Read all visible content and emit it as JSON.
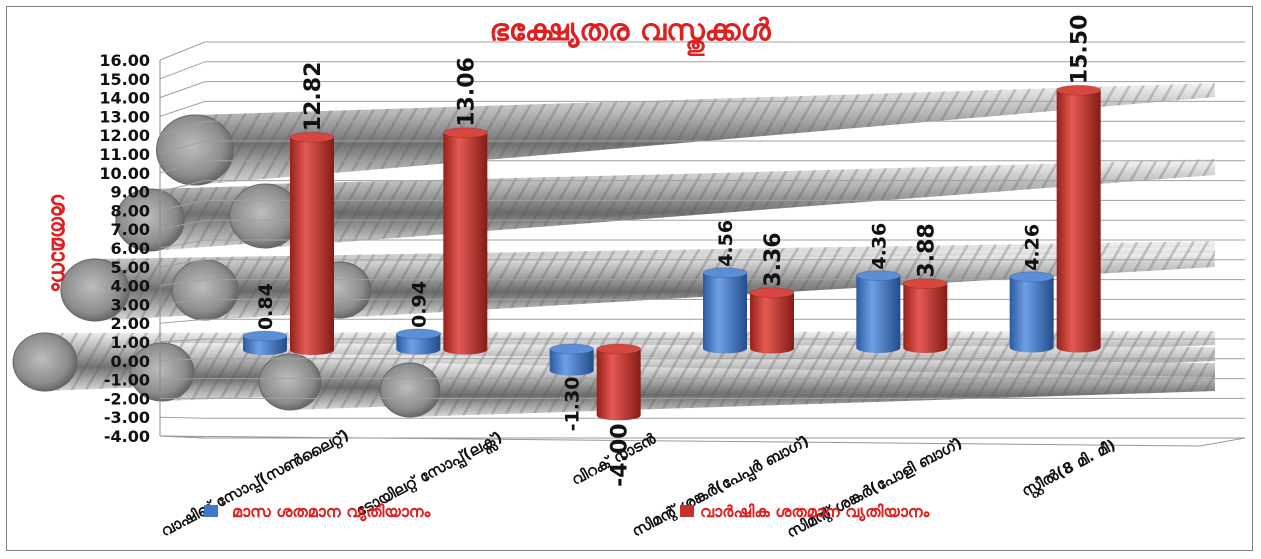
{
  "chart_data": {
    "type": "bar",
    "title": "ഭക്ഷ്യേതര വസ്തുക്കൾ",
    "ylabel": "ശതമാനം",
    "xlabel": "",
    "ylim": [
      -4,
      16
    ],
    "ytick_labels": [
      "-4.00",
      "-3.00",
      "-2.00",
      "-1.00",
      "0.00",
      "1.00",
      "2.00",
      "3.00",
      "4.00",
      "5.00",
      "6.00",
      "7.00",
      "8.00",
      "9.00",
      "10.00",
      "11.00",
      "12.00",
      "13.00",
      "14.00",
      "15.00",
      "16.00"
    ],
    "categories": [
      "വാഷിങ് സോപ്പ്(സൺലൈറ്റ്)",
      "ടോയിലറ്റ് സോപ്പ്(ലക്സ്)",
      "വിറക് നാടൻ",
      "സിമന്റ് ശങ്കർ(പേപ്പർ ബാഗ്)",
      "സിമന്റ് ശങ്കർ(പോളി ബാഗ്)",
      "സ്റ്റീൽ(8 മി. മീ)"
    ],
    "series": [
      {
        "name": "മാസ ശതമാന വ്യതിയാനം",
        "color": "#3d78c9",
        "values": [
          0.84,
          0.94,
          -1.3,
          4.56,
          4.36,
          4.26
        ],
        "labels": [
          "0.84",
          "0.94",
          "-1.30",
          "4.56",
          "4.36",
          "4.26"
        ]
      },
      {
        "name": "വാർഷിക  ശതമാന വ്യതിയാനം",
        "color": "#c8302b",
        "values": [
          12.82,
          13.06,
          -4.0,
          3.36,
          3.88,
          15.5
        ],
        "labels": [
          "12.82",
          "13.06",
          "-4.00",
          "3.36",
          "3.88",
          "15.50"
        ]
      }
    ],
    "grid": true,
    "legend": "bottom"
  }
}
